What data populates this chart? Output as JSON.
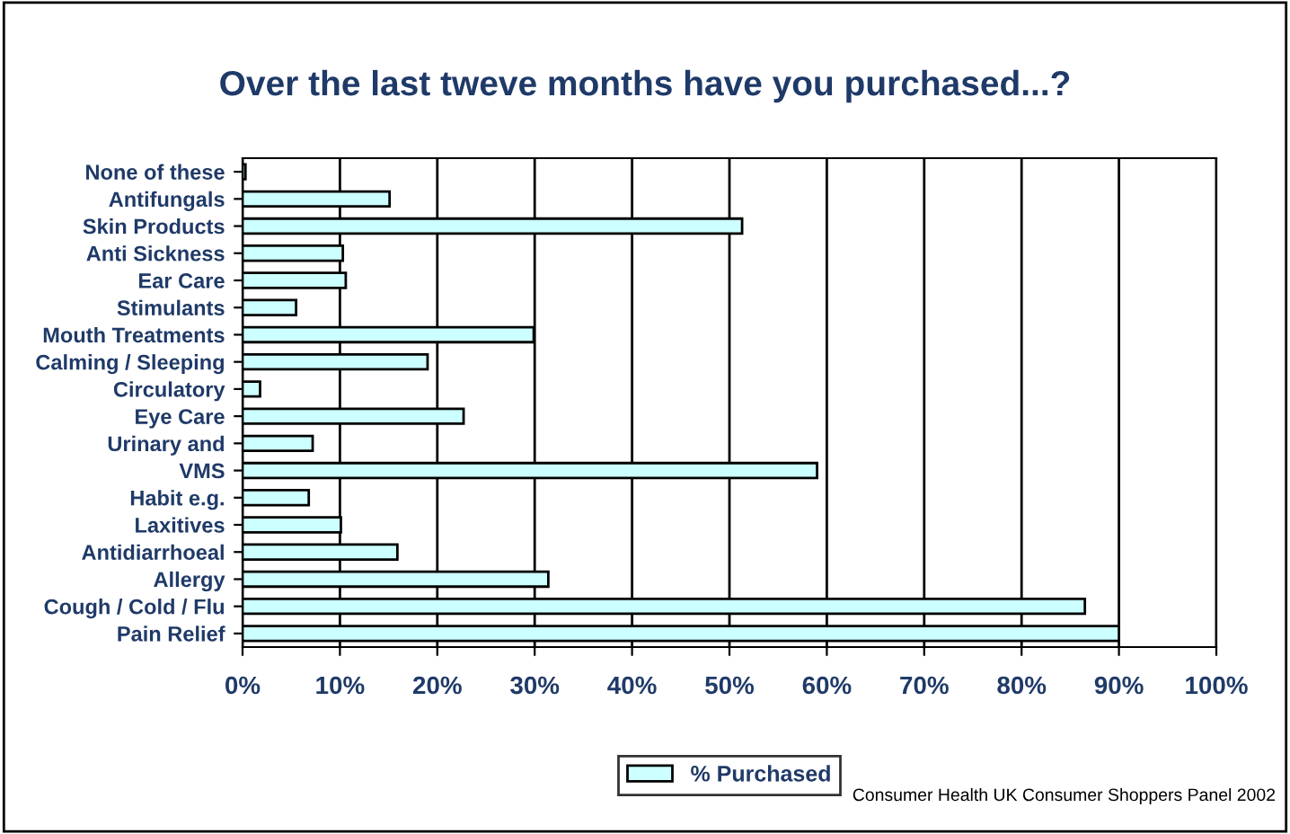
{
  "chart_data": {
    "type": "bar",
    "orientation": "horizontal",
    "title": "Over the last tweve months have you purchased...?",
    "categories": [
      "None of these",
      "Antifungals",
      "Skin Products",
      "Anti Sickness",
      "Ear Care",
      "Stimulants",
      "Mouth Treatments",
      "Calming / Sleeping",
      "Circulatory",
      "Eye Care",
      "Urinary and",
      "VMS",
      "Habit e.g.",
      "Laxitives",
      "Antidiarrhoeal",
      "Allergy",
      "Cough / Cold / Flu",
      "Pain Relief"
    ],
    "series": [
      {
        "name": "% Purchased",
        "color": "#ccffff",
        "values": [
          0.3,
          15.1,
          51.3,
          10.3,
          10.6,
          5.5,
          29.9,
          19.0,
          1.8,
          22.7,
          7.2,
          59.0,
          6.8,
          10.1,
          15.9,
          31.4,
          86.5,
          90.0
        ]
      }
    ],
    "xlim": [
      0,
      100
    ],
    "xticks": [
      {
        "value": 0,
        "label": "0%"
      },
      {
        "value": 10,
        "label": "10%"
      },
      {
        "value": 20,
        "label": "20%"
      },
      {
        "value": 30,
        "label": "30%"
      },
      {
        "value": 40,
        "label": "40%"
      },
      {
        "value": 50,
        "label": "50%"
      },
      {
        "value": 60,
        "label": "60%"
      },
      {
        "value": 70,
        "label": "70%"
      },
      {
        "value": 80,
        "label": "80%"
      },
      {
        "value": 90,
        "label": "90%"
      },
      {
        "value": 100,
        "label": "100%"
      }
    ],
    "grid": "x",
    "legend": "bottom",
    "annotations": [
      "Consumer Health UK Consumer Shoppers Panel 2002"
    ]
  }
}
